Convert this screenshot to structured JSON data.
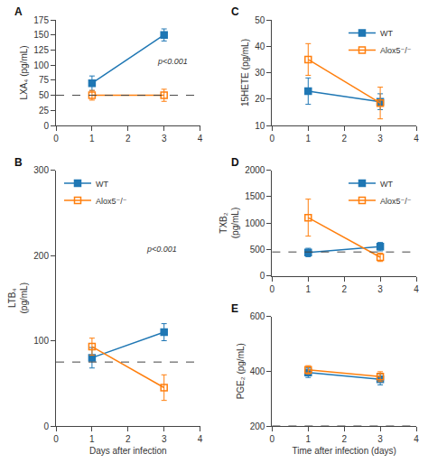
{
  "chart_data": [
    {
      "type": "line",
      "title": "A",
      "ylabel": "LXA₄ (pg/mL)",
      "xlim": [
        0,
        4
      ],
      "xticks": [
        0,
        1,
        2,
        3,
        4
      ],
      "ylim": [
        0,
        175
      ],
      "yticks": [
        0,
        25,
        50,
        75,
        100,
        125,
        150,
        175
      ],
      "grid": false,
      "series": [
        {
          "x": [
            1,
            3
          ],
          "values": [
            70,
            150
          ],
          "errors": [
            12,
            10
          ],
          "marker": "square"
        },
        {
          "x": [
            1,
            3
          ],
          "values": [
            50,
            50
          ],
          "errors": [
            8,
            10
          ],
          "marker": "square-open"
        }
      ],
      "hline": {
        "y": 50,
        "line_style": "dashed"
      },
      "annotations": [
        {
          "text": "p<0.001",
          "x": 2.75,
          "y": 95
        }
      ]
    },
    {
      "type": "line",
      "title": "B",
      "xlabel": "Days after infection",
      "ylabel": "LTB₄\n(pg/mL)",
      "xlim": [
        0,
        4
      ],
      "xticks": [
        0,
        1,
        2,
        3,
        4
      ],
      "ylim": [
        0,
        300
      ],
      "yticks": [
        0,
        100,
        200,
        300
      ],
      "grid": false,
      "legend": "upper left",
      "series": [
        {
          "name": "WT",
          "x": [
            1,
            3
          ],
          "values": [
            80,
            110
          ],
          "errors": [
            12,
            10
          ],
          "marker": "square"
        },
        {
          "name": "Alox5⁻/⁻",
          "x": [
            1,
            3
          ],
          "values": [
            93,
            45
          ],
          "errors": [
            10,
            15
          ],
          "marker": "square-open"
        }
      ],
      "hline": {
        "y": 75,
        "line_style": "dashed"
      },
      "annotations": [
        {
          "text": "p<0.001",
          "x": 2.45,
          "y": 200
        }
      ]
    },
    {
      "type": "line",
      "title": "C",
      "ylabel": "15HETE (pg/mL)",
      "xlim": [
        0,
        4
      ],
      "xticks": [
        0,
        1,
        2,
        3,
        4
      ],
      "ylim": [
        10,
        50
      ],
      "yticks": [
        10,
        20,
        30,
        40,
        50
      ],
      "grid": false,
      "legend": "upper right",
      "series": [
        {
          "name": "WT",
          "x": [
            1,
            3
          ],
          "values": [
            23,
            19
          ],
          "errors": [
            5,
            3
          ],
          "marker": "square"
        },
        {
          "name": "Alox5⁻/⁻",
          "x": [
            1,
            3
          ],
          "values": [
            35,
            18.5
          ],
          "errors": [
            6,
            6
          ],
          "marker": "square-open"
        }
      ]
    },
    {
      "type": "line",
      "title": "D",
      "ylabel": "TXB₂\n(pg/mL)",
      "xlim": [
        0,
        4
      ],
      "xticks": [
        0,
        1,
        2,
        3,
        4
      ],
      "ylim": [
        0,
        2000
      ],
      "yticks": [
        0,
        500,
        1000,
        1500,
        2000
      ],
      "grid": false,
      "legend": "upper right",
      "series": [
        {
          "name": "WT",
          "x": [
            1,
            3
          ],
          "values": [
            440,
            550
          ],
          "errors": [
            80,
            80
          ],
          "marker": "square"
        },
        {
          "name": "Alox5⁻/⁻",
          "x": [
            1,
            3
          ],
          "values": [
            1100,
            350
          ],
          "errors": [
            350,
            80
          ],
          "marker": "square-open"
        }
      ],
      "hline": {
        "y": 450,
        "line_style": "dashed"
      }
    },
    {
      "type": "line",
      "title": "E",
      "xlabel": "Time after infection (days)",
      "ylabel": "PGE₂ (pg/mL)",
      "xlim": [
        0,
        4
      ],
      "xticks": [
        0,
        1,
        2,
        3,
        4
      ],
      "ylim": [
        200,
        600
      ],
      "yticks": [
        200,
        400,
        600
      ],
      "grid": false,
      "series": [
        {
          "x": [
            1,
            3
          ],
          "values": [
            395,
            370
          ],
          "errors": [
            18,
            20
          ],
          "marker": "square"
        },
        {
          "x": [
            1,
            3
          ],
          "values": [
            405,
            380
          ],
          "errors": [
            15,
            18
          ],
          "marker": "square-open"
        }
      ],
      "hline": {
        "y": 200,
        "line_style": "dashed"
      }
    }
  ]
}
